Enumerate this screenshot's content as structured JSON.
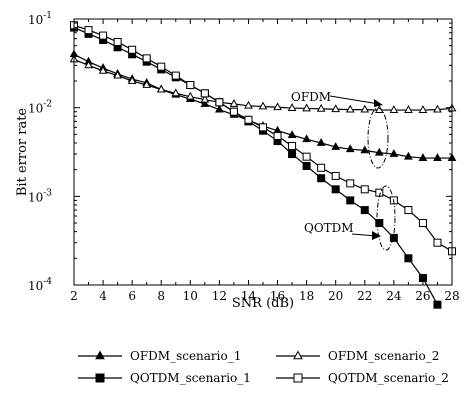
{
  "chart_data": {
    "type": "line",
    "title": "",
    "xlabel": "SNR (dB)",
    "ylabel": "Bit error rate",
    "xlim": [
      2,
      28
    ],
    "ylim": [
      0.0001,
      0.1
    ],
    "yscale": "log",
    "grid": false,
    "legend_position": "bottom",
    "x_ticks": [
      2,
      4,
      6,
      8,
      10,
      12,
      14,
      16,
      18,
      20,
      22,
      24,
      26,
      28
    ],
    "x_tick_labels": [
      "2",
      "4",
      "6",
      "8",
      "10",
      "12",
      "14",
      "16",
      "18",
      "20",
      "22",
      "24",
      "26",
      "28"
    ],
    "y_ticks": [
      0.1,
      0.01,
      0.001,
      0.0001
    ],
    "y_tick_labels": [
      {
        "base": "10",
        "exp": "-1"
      },
      {
        "base": "10",
        "exp": "-2"
      },
      {
        "base": "10",
        "exp": "-3"
      },
      {
        "base": "10",
        "exp": "-4"
      }
    ],
    "series": [
      {
        "name": "OFDM_scenario_1",
        "marker": "triangle",
        "fill": "filled",
        "x": [
          2,
          3,
          4,
          5,
          6,
          7,
          8,
          9,
          10,
          11,
          12,
          13,
          14,
          15,
          16,
          17,
          18,
          19,
          20,
          21,
          22,
          23,
          24,
          25,
          26,
          27,
          28
        ],
        "y": [
          0.04,
          0.033,
          0.028,
          0.024,
          0.021,
          0.019,
          0.016,
          0.014,
          0.0125,
          0.011,
          0.0095,
          0.0083,
          0.0072,
          0.0062,
          0.0055,
          0.0049,
          0.0044,
          0.004,
          0.0036,
          0.0034,
          0.0033,
          0.0031,
          0.003,
          0.0028,
          0.0027,
          0.0027,
          0.0027
        ]
      },
      {
        "name": "QOTDM_scenario_1",
        "marker": "square",
        "fill": "filled",
        "x": [
          2,
          3,
          4,
          5,
          6,
          7,
          8,
          9,
          10,
          11,
          12,
          13,
          14,
          15,
          16,
          17,
          18,
          19,
          20,
          21,
          22,
          23,
          24,
          25,
          26,
          27
        ],
        "y": [
          0.08,
          0.068,
          0.058,
          0.048,
          0.04,
          0.033,
          0.027,
          0.022,
          0.018,
          0.0145,
          0.0115,
          0.009,
          0.007,
          0.0055,
          0.0042,
          0.003,
          0.0022,
          0.0016,
          0.0012,
          0.0009,
          0.0007,
          0.0005,
          0.00034,
          0.0002,
          0.00012,
          6e-05
        ]
      },
      {
        "name": "OFDM_scenario_2",
        "marker": "triangle",
        "fill": "open",
        "x": [
          2,
          3,
          4,
          5,
          6,
          7,
          8,
          9,
          10,
          11,
          12,
          13,
          14,
          15,
          16,
          17,
          18,
          19,
          20,
          21,
          22,
          23,
          24,
          25,
          26,
          27,
          28
        ],
        "y": [
          0.035,
          0.03,
          0.026,
          0.023,
          0.02,
          0.018,
          0.016,
          0.0145,
          0.0133,
          0.0123,
          0.0115,
          0.011,
          0.0105,
          0.0103,
          0.0101,
          0.0099,
          0.0098,
          0.0097,
          0.0096,
          0.0095,
          0.0095,
          0.0094,
          0.0094,
          0.0094,
          0.0094,
          0.0095,
          0.0098
        ]
      },
      {
        "name": "QOTDM_scenario_2",
        "marker": "square",
        "fill": "open",
        "x": [
          2,
          3,
          4,
          5,
          6,
          7,
          8,
          9,
          10,
          11,
          12,
          13,
          14,
          15,
          16,
          17,
          18,
          19,
          20,
          21,
          22,
          23,
          24,
          25,
          26,
          27,
          28
        ],
        "y": [
          0.085,
          0.075,
          0.065,
          0.055,
          0.045,
          0.036,
          0.029,
          0.023,
          0.018,
          0.0145,
          0.0115,
          0.009,
          0.0073,
          0.006,
          0.0048,
          0.0037,
          0.0028,
          0.0021,
          0.0017,
          0.0014,
          0.0012,
          0.0011,
          0.0009,
          0.0007,
          0.0005,
          0.0003,
          0.00024
        ]
      }
    ],
    "annotations": [
      {
        "text": "OFDM",
        "x": 23,
        "y": 0.0095
      },
      {
        "text": "QOTDM",
        "x": 23.5,
        "y": 0.00065
      }
    ]
  }
}
